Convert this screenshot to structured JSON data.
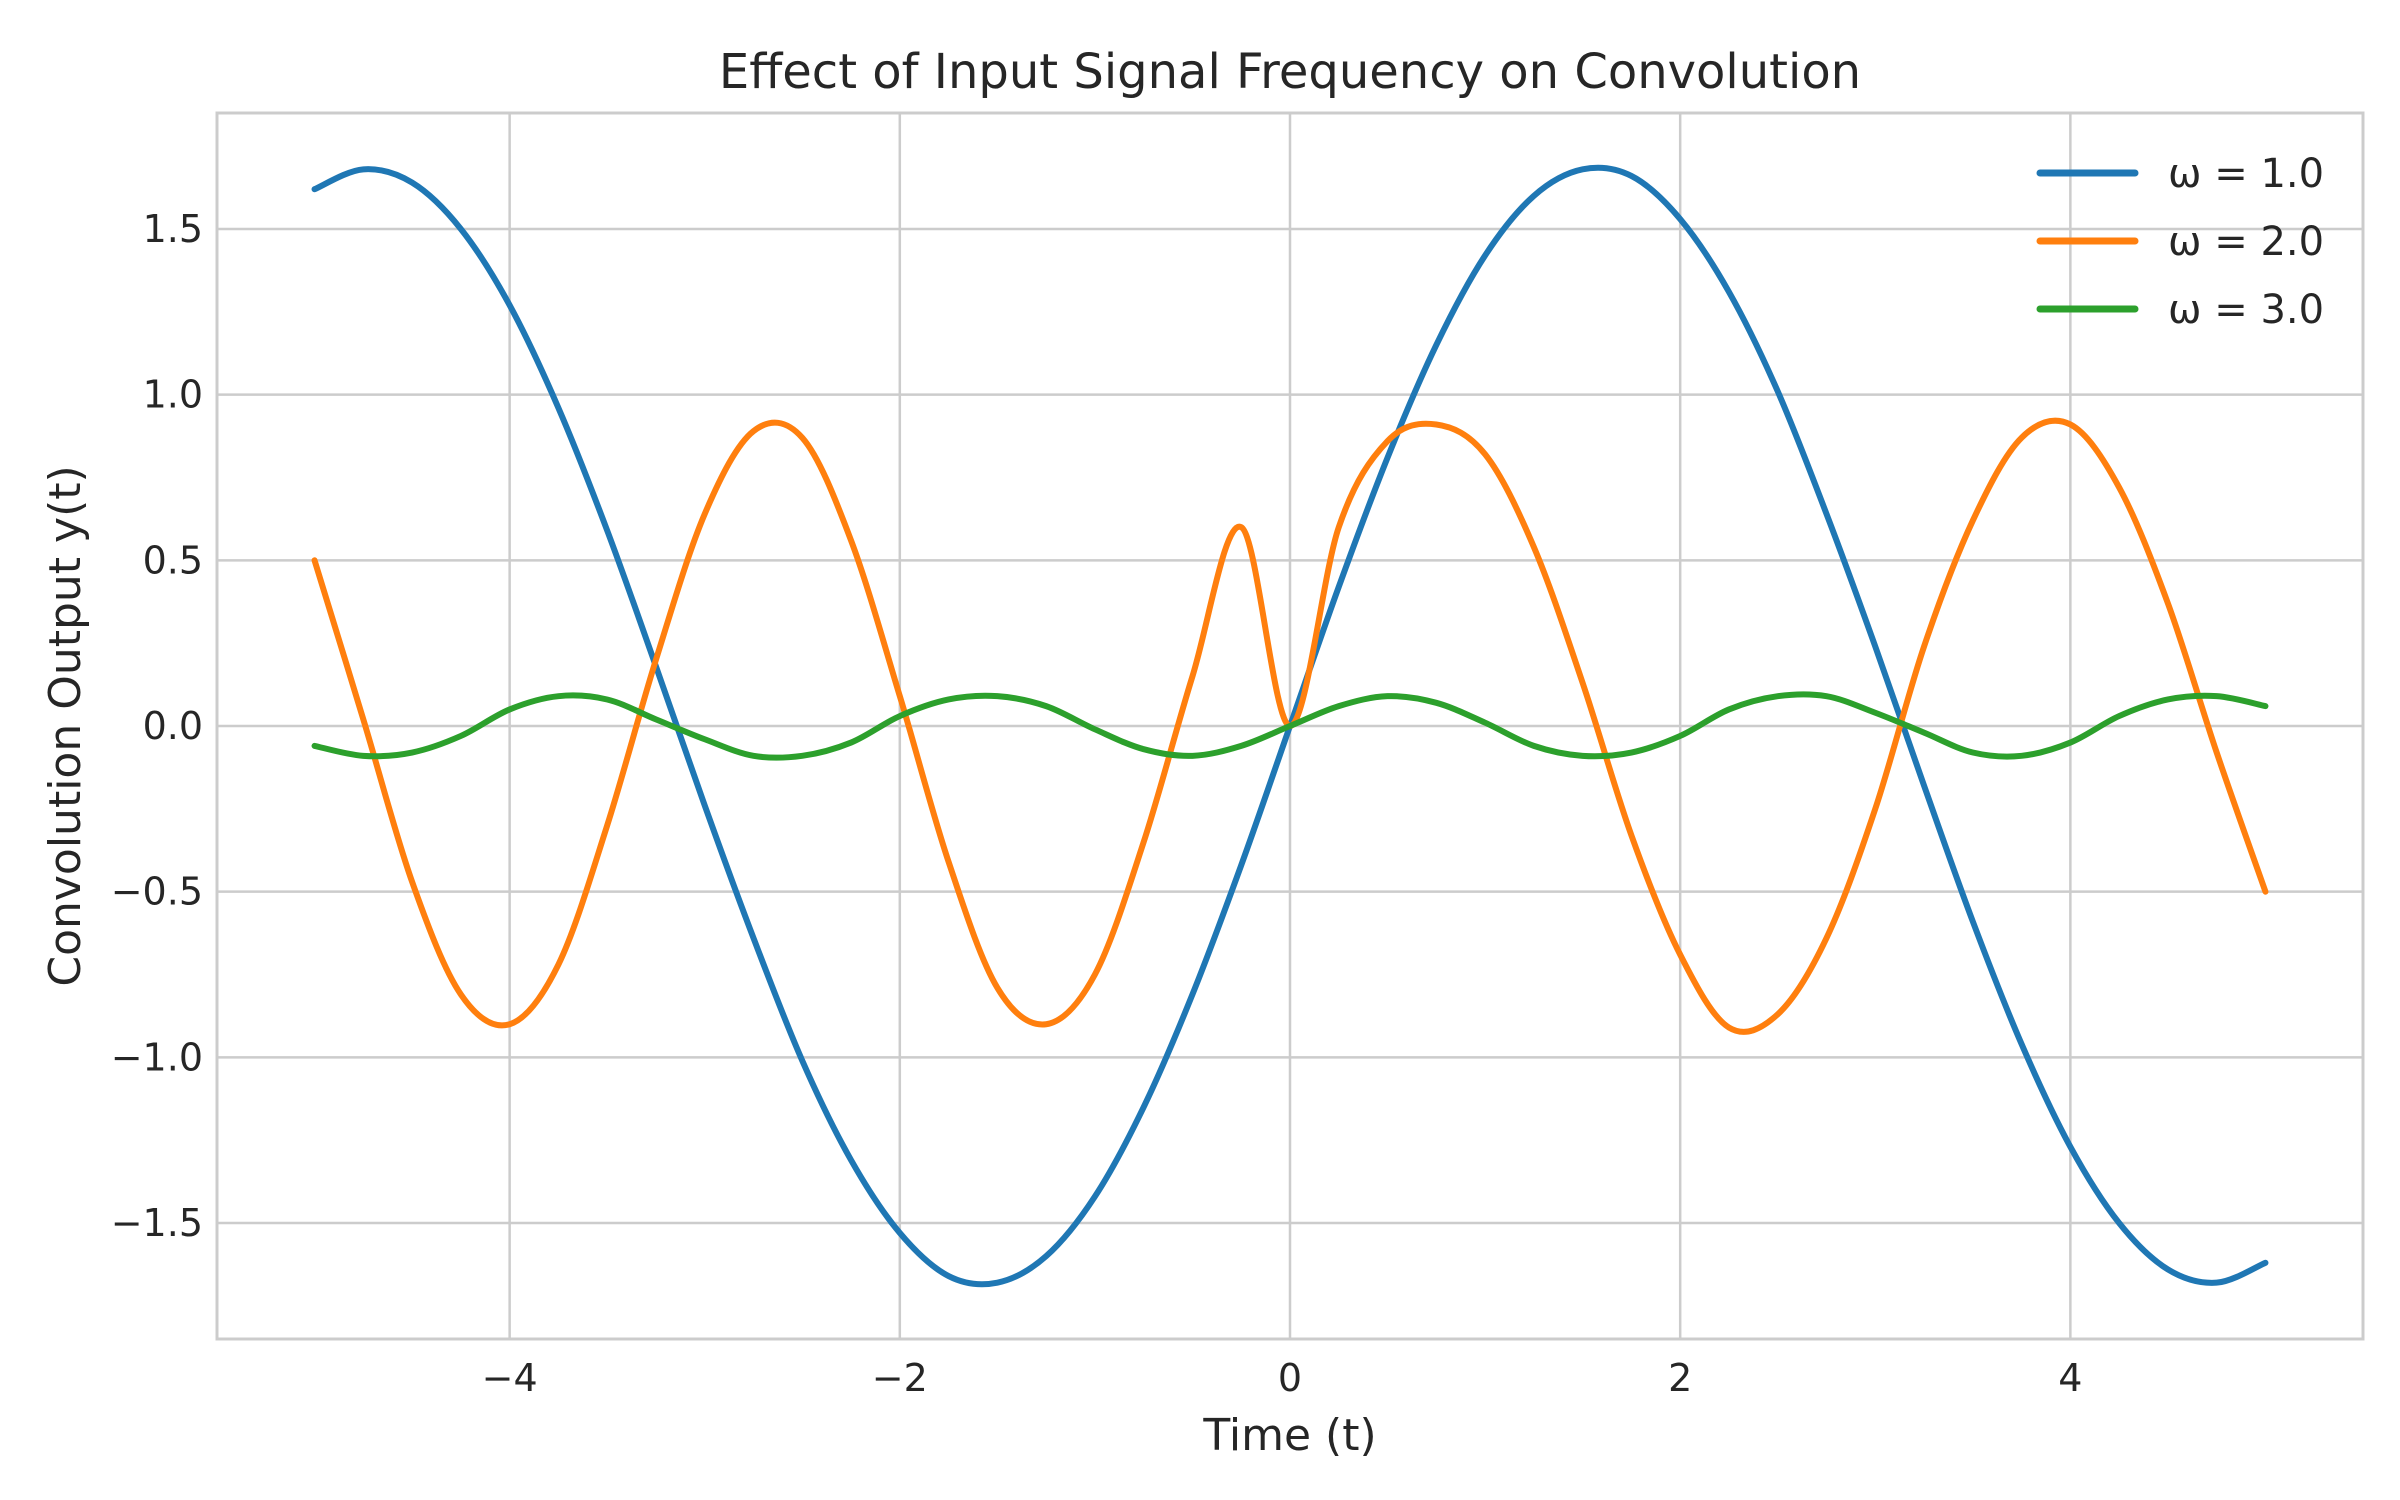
{
  "chart_data": {
    "type": "line",
    "title": "Effect of Input Signal Frequency on Convolution",
    "xlabel": "Time (t)",
    "ylabel": "Convolution Output y(t)",
    "xlim": [
      -5.5,
      5.5
    ],
    "ylim": [
      -1.85,
      1.85
    ],
    "grid": true,
    "legend_position": "top-right",
    "x_ticks": [
      {
        "value": -4,
        "label": "−4"
      },
      {
        "value": -2,
        "label": "−2"
      },
      {
        "value": 0,
        "label": "0"
      },
      {
        "value": 2,
        "label": "2"
      },
      {
        "value": 4,
        "label": "4"
      }
    ],
    "y_ticks": [
      {
        "value": 1.5,
        "label": "1.5"
      },
      {
        "value": 1.0,
        "label": "1.0"
      },
      {
        "value": 0.5,
        "label": "0.5"
      },
      {
        "value": 0.0,
        "label": "0.0"
      },
      {
        "value": -0.5,
        "label": "−0.5"
      },
      {
        "value": -1.0,
        "label": "−1.0"
      },
      {
        "value": -1.5,
        "label": "−1.5"
      }
    ],
    "x": [
      -5,
      -4.75,
      -4.5,
      -4.25,
      -4,
      -3.75,
      -3.5,
      -3.25,
      -3,
      -2.75,
      -2.5,
      -2.25,
      -2,
      -1.75,
      -1.5,
      -1.25,
      -1,
      -0.75,
      -0.5,
      -0.25,
      0,
      0.25,
      0.5,
      0.75,
      1,
      1.25,
      1.5,
      1.75,
      2,
      2.25,
      2.5,
      2.75,
      3,
      3.25,
      3.5,
      3.75,
      4,
      4.25,
      4.5,
      4.75,
      5
    ],
    "series": [
      {
        "name": "ω = 1.0",
        "color": "#1f77b4",
        "values": [
          1.62,
          1.68,
          1.64,
          1.5,
          1.27,
          0.96,
          0.59,
          0.18,
          -0.24,
          -0.64,
          -1.01,
          -1.31,
          -1.53,
          -1.66,
          -1.68,
          -1.6,
          -1.42,
          -1.15,
          -0.81,
          -0.42,
          0.0,
          0.42,
          0.81,
          1.15,
          1.42,
          1.6,
          1.68,
          1.66,
          1.53,
          1.31,
          1.01,
          0.64,
          0.24,
          -0.18,
          -0.59,
          -0.96,
          -1.27,
          -1.5,
          -1.64,
          -1.68,
          -1.62
        ]
      },
      {
        "name": "ω = 2.0",
        "color": "#ff7f0e",
        "values": [
          0.5,
          0.02,
          -0.47,
          -0.81,
          -0.9,
          -0.72,
          -0.3,
          0.2,
          0.64,
          0.89,
          0.87,
          0.56,
          0.09,
          -0.41,
          -0.79,
          -0.9,
          -0.75,
          -0.35,
          0.15,
          0.6,
          0.0,
          0.6,
          0.86,
          0.91,
          0.82,
          0.54,
          0.13,
          -0.33,
          -0.69,
          -0.91,
          -0.87,
          -0.64,
          -0.25,
          0.24,
          0.62,
          0.87,
          0.91,
          0.72,
          0.37,
          -0.08,
          -0.5
        ]
      },
      {
        "name": "ω = 3.0",
        "color": "#2ca02c",
        "values": [
          -0.06,
          -0.09,
          -0.08,
          -0.03,
          0.05,
          0.09,
          0.08,
          0.02,
          -0.04,
          -0.09,
          -0.09,
          -0.05,
          0.03,
          0.08,
          0.09,
          0.06,
          -0.01,
          -0.07,
          -0.09,
          -0.06,
          0.0,
          0.06,
          0.09,
          0.07,
          0.01,
          -0.06,
          -0.09,
          -0.08,
          -0.03,
          0.05,
          0.09,
          0.09,
          0.04,
          -0.02,
          -0.08,
          -0.09,
          -0.05,
          0.03,
          0.08,
          0.09,
          0.06
        ]
      }
    ]
  }
}
